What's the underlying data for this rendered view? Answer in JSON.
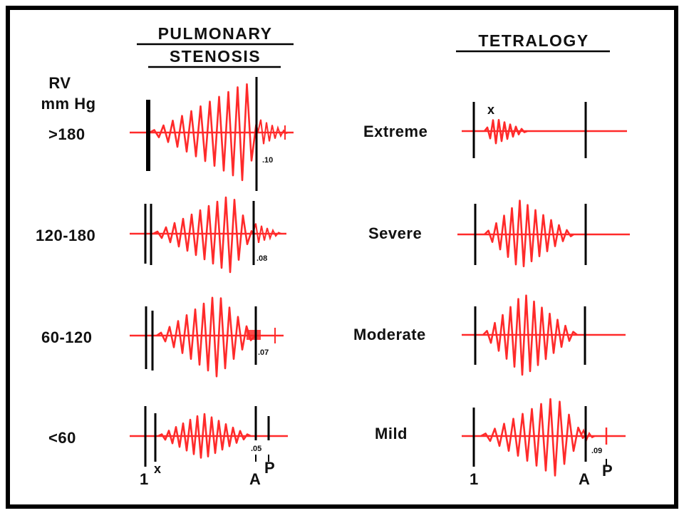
{
  "left_panel": {
    "title_line1": "PULMONARY",
    "title_line2": "STENOSIS",
    "axis_label_line1": "RV",
    "axis_label_line2": "mm Hg",
    "rows": [
      {
        "label": ">180",
        "interval": ".10"
      },
      {
        "label": "120-180",
        "interval": ".08"
      },
      {
        "label": "60-120",
        "interval": ".07"
      },
      {
        "label": "<60",
        "interval": ".05"
      }
    ],
    "markers": {
      "first_sound": "1",
      "click": "x",
      "aortic": "A",
      "pulmonic": "P"
    }
  },
  "right_panel": {
    "title": "TETRALOGY",
    "rows": [
      {
        "label": "Extreme"
      },
      {
        "label": "Severe"
      },
      {
        "label": "Moderate"
      },
      {
        "label": "Mild",
        "interval": ".09"
      }
    ],
    "markers": {
      "first_sound": "1",
      "click": "x",
      "aortic": "A",
      "pulmonic": "P"
    }
  },
  "colors": {
    "murmur": "#ff2a2a",
    "lines": "#000000",
    "background": "#ffffff"
  }
}
